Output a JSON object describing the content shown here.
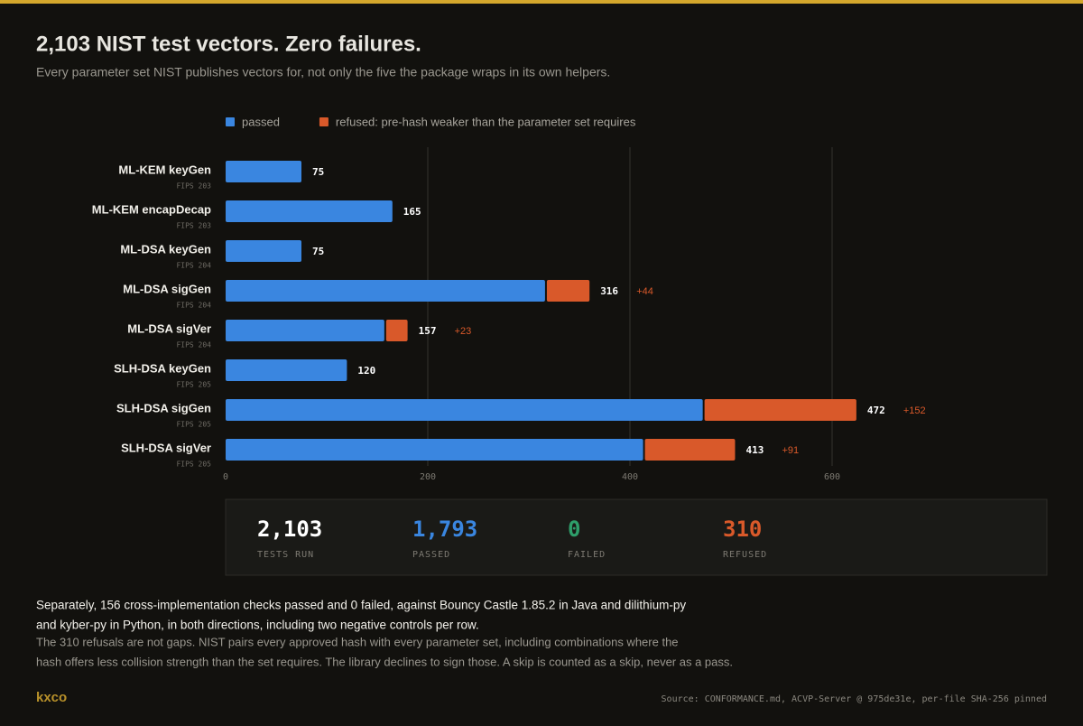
{
  "header": {
    "title": "2,103 NIST test vectors. Zero failures.",
    "subtitle": "Every parameter set NIST publishes vectors for, not only the five the package wraps in its own helpers."
  },
  "chart_data": {
    "type": "stacked-barh",
    "categories": [
      "ML-KEM keyGen",
      "ML-KEM encapDecap",
      "ML-DSA keyGen",
      "ML-DSA sigGen",
      "ML-DSA sigVer",
      "SLH-DSA keyGen",
      "SLH-DSA sigGen",
      "SLH-DSA sigVer"
    ],
    "subcategories": [
      "FIPS 203",
      "FIPS 203",
      "FIPS 204",
      "FIPS 204",
      "FIPS 204",
      "FIPS 205",
      "FIPS 205",
      "FIPS 205"
    ],
    "series": [
      {
        "name": "passed",
        "color": "#3a86e0",
        "values": [
          75,
          165,
          75,
          316,
          157,
          120,
          472,
          413
        ]
      },
      {
        "name": "refused: pre-hash weaker than the parameter set requires",
        "color": "#d9592a",
        "values": [
          null,
          null,
          null,
          44,
          23,
          null,
          152,
          91
        ],
        "value_labels": [
          null,
          null,
          null,
          "+44",
          "+23",
          null,
          "+152",
          "+91"
        ]
      }
    ],
    "xlim": [
      0,
      800
    ],
    "xticks": [
      0,
      200,
      400,
      600
    ],
    "grid": true,
    "legend": "top"
  },
  "stats": [
    {
      "value": "2,103",
      "label": "TESTS RUN"
    },
    {
      "value": "1,793",
      "label": "PASSED"
    },
    {
      "value": "0",
      "label": "FAILED"
    },
    {
      "value": "310",
      "label": "REFUSED"
    }
  ],
  "notes": {
    "primary": [
      "Separately, 156 cross-implementation checks passed and 0 failed, against Bouncy Castle 1.85.2 in Java and dilithium-py",
      "and kyber-py in Python, in both directions, including two negative controls per row."
    ],
    "secondary": [
      "The 310 refusals are not gaps. NIST pairs every approved hash with every parameter set, including combinations where the",
      "hash offers less collision strength than the set requires. The library declines to sign those. A skip is counted as a skip, never as a pass."
    ]
  },
  "footer": {
    "brand": "kxco",
    "source": "Source: CONFORMANCE.md, ACVP-Server @ 975de31e, per-file SHA-256 pinned"
  }
}
